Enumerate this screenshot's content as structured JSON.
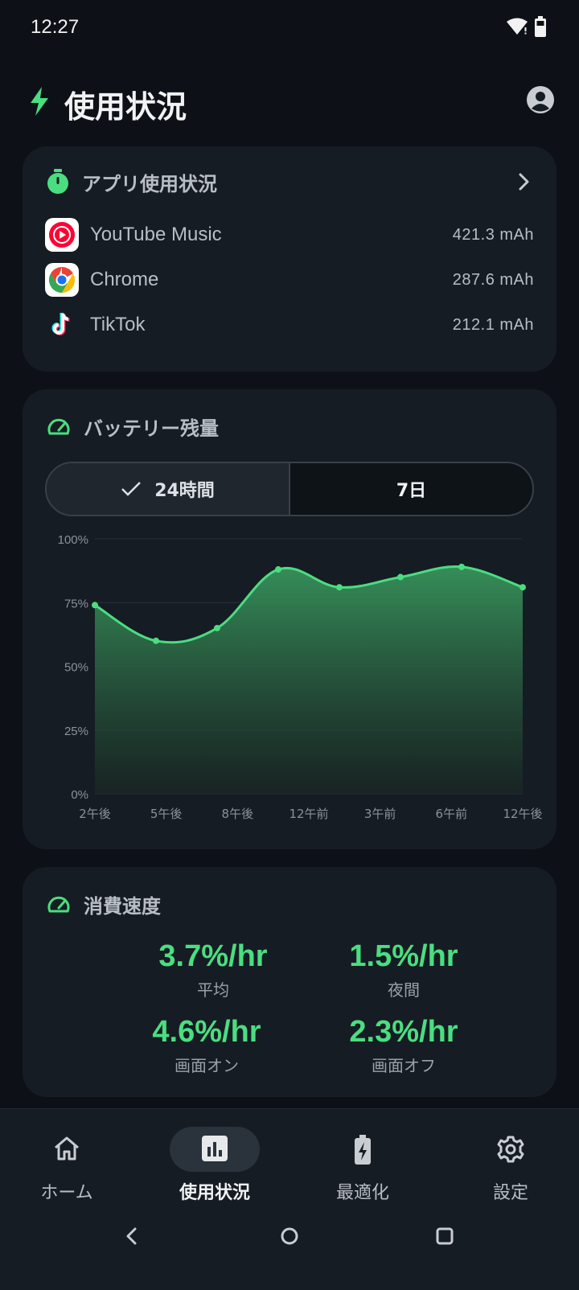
{
  "status_bar": {
    "time": "12:27"
  },
  "header": {
    "title": "使用状況"
  },
  "app_usage": {
    "title": "アプリ使用状況",
    "apps": [
      {
        "name": "YouTube Music",
        "value": "421.3 mAh"
      },
      {
        "name": "Chrome",
        "value": "287.6 mAh"
      },
      {
        "name": "TikTok",
        "value": "212.1 mAh"
      }
    ]
  },
  "battery": {
    "title": "バッテリー残量",
    "tabs": [
      {
        "label": "24時間",
        "selected": true
      },
      {
        "label": "7日",
        "selected": false
      }
    ]
  },
  "chart_data": {
    "type": "area",
    "title": "",
    "xlabel": "",
    "ylabel": "",
    "ylim": [
      0,
      100
    ],
    "y_ticks": [
      "100%",
      "75%",
      "50%",
      "25%",
      "0%"
    ],
    "x_ticks": [
      "2午後",
      "5午後",
      "8午後",
      "12午前",
      "3午前",
      "6午前",
      "12午後"
    ],
    "x": [
      0,
      1,
      2,
      3,
      4,
      5,
      6,
      7
    ],
    "values": [
      74,
      60,
      65,
      88,
      81,
      85,
      89,
      81
    ],
    "grid": true,
    "color": "#4ade80"
  },
  "consumption": {
    "title": "消費速度",
    "metrics": [
      {
        "value": "3.7%/hr",
        "label": "平均"
      },
      {
        "value": "1.5%/hr",
        "label": "夜間"
      },
      {
        "value": "4.6%/hr",
        "label": "画面オン"
      },
      {
        "value": "2.3%/hr",
        "label": "画面オフ"
      }
    ]
  },
  "nav": {
    "items": [
      {
        "label": "ホーム",
        "icon": "home-icon",
        "active": false
      },
      {
        "label": "使用状況",
        "icon": "bar-chart-icon",
        "active": true
      },
      {
        "label": "最適化",
        "icon": "battery-bolt-icon",
        "active": false
      },
      {
        "label": "設定",
        "icon": "gear-icon",
        "active": false
      }
    ]
  },
  "colors": {
    "accent": "#4ade80",
    "background": "#0d1117",
    "card": "#161c23"
  }
}
